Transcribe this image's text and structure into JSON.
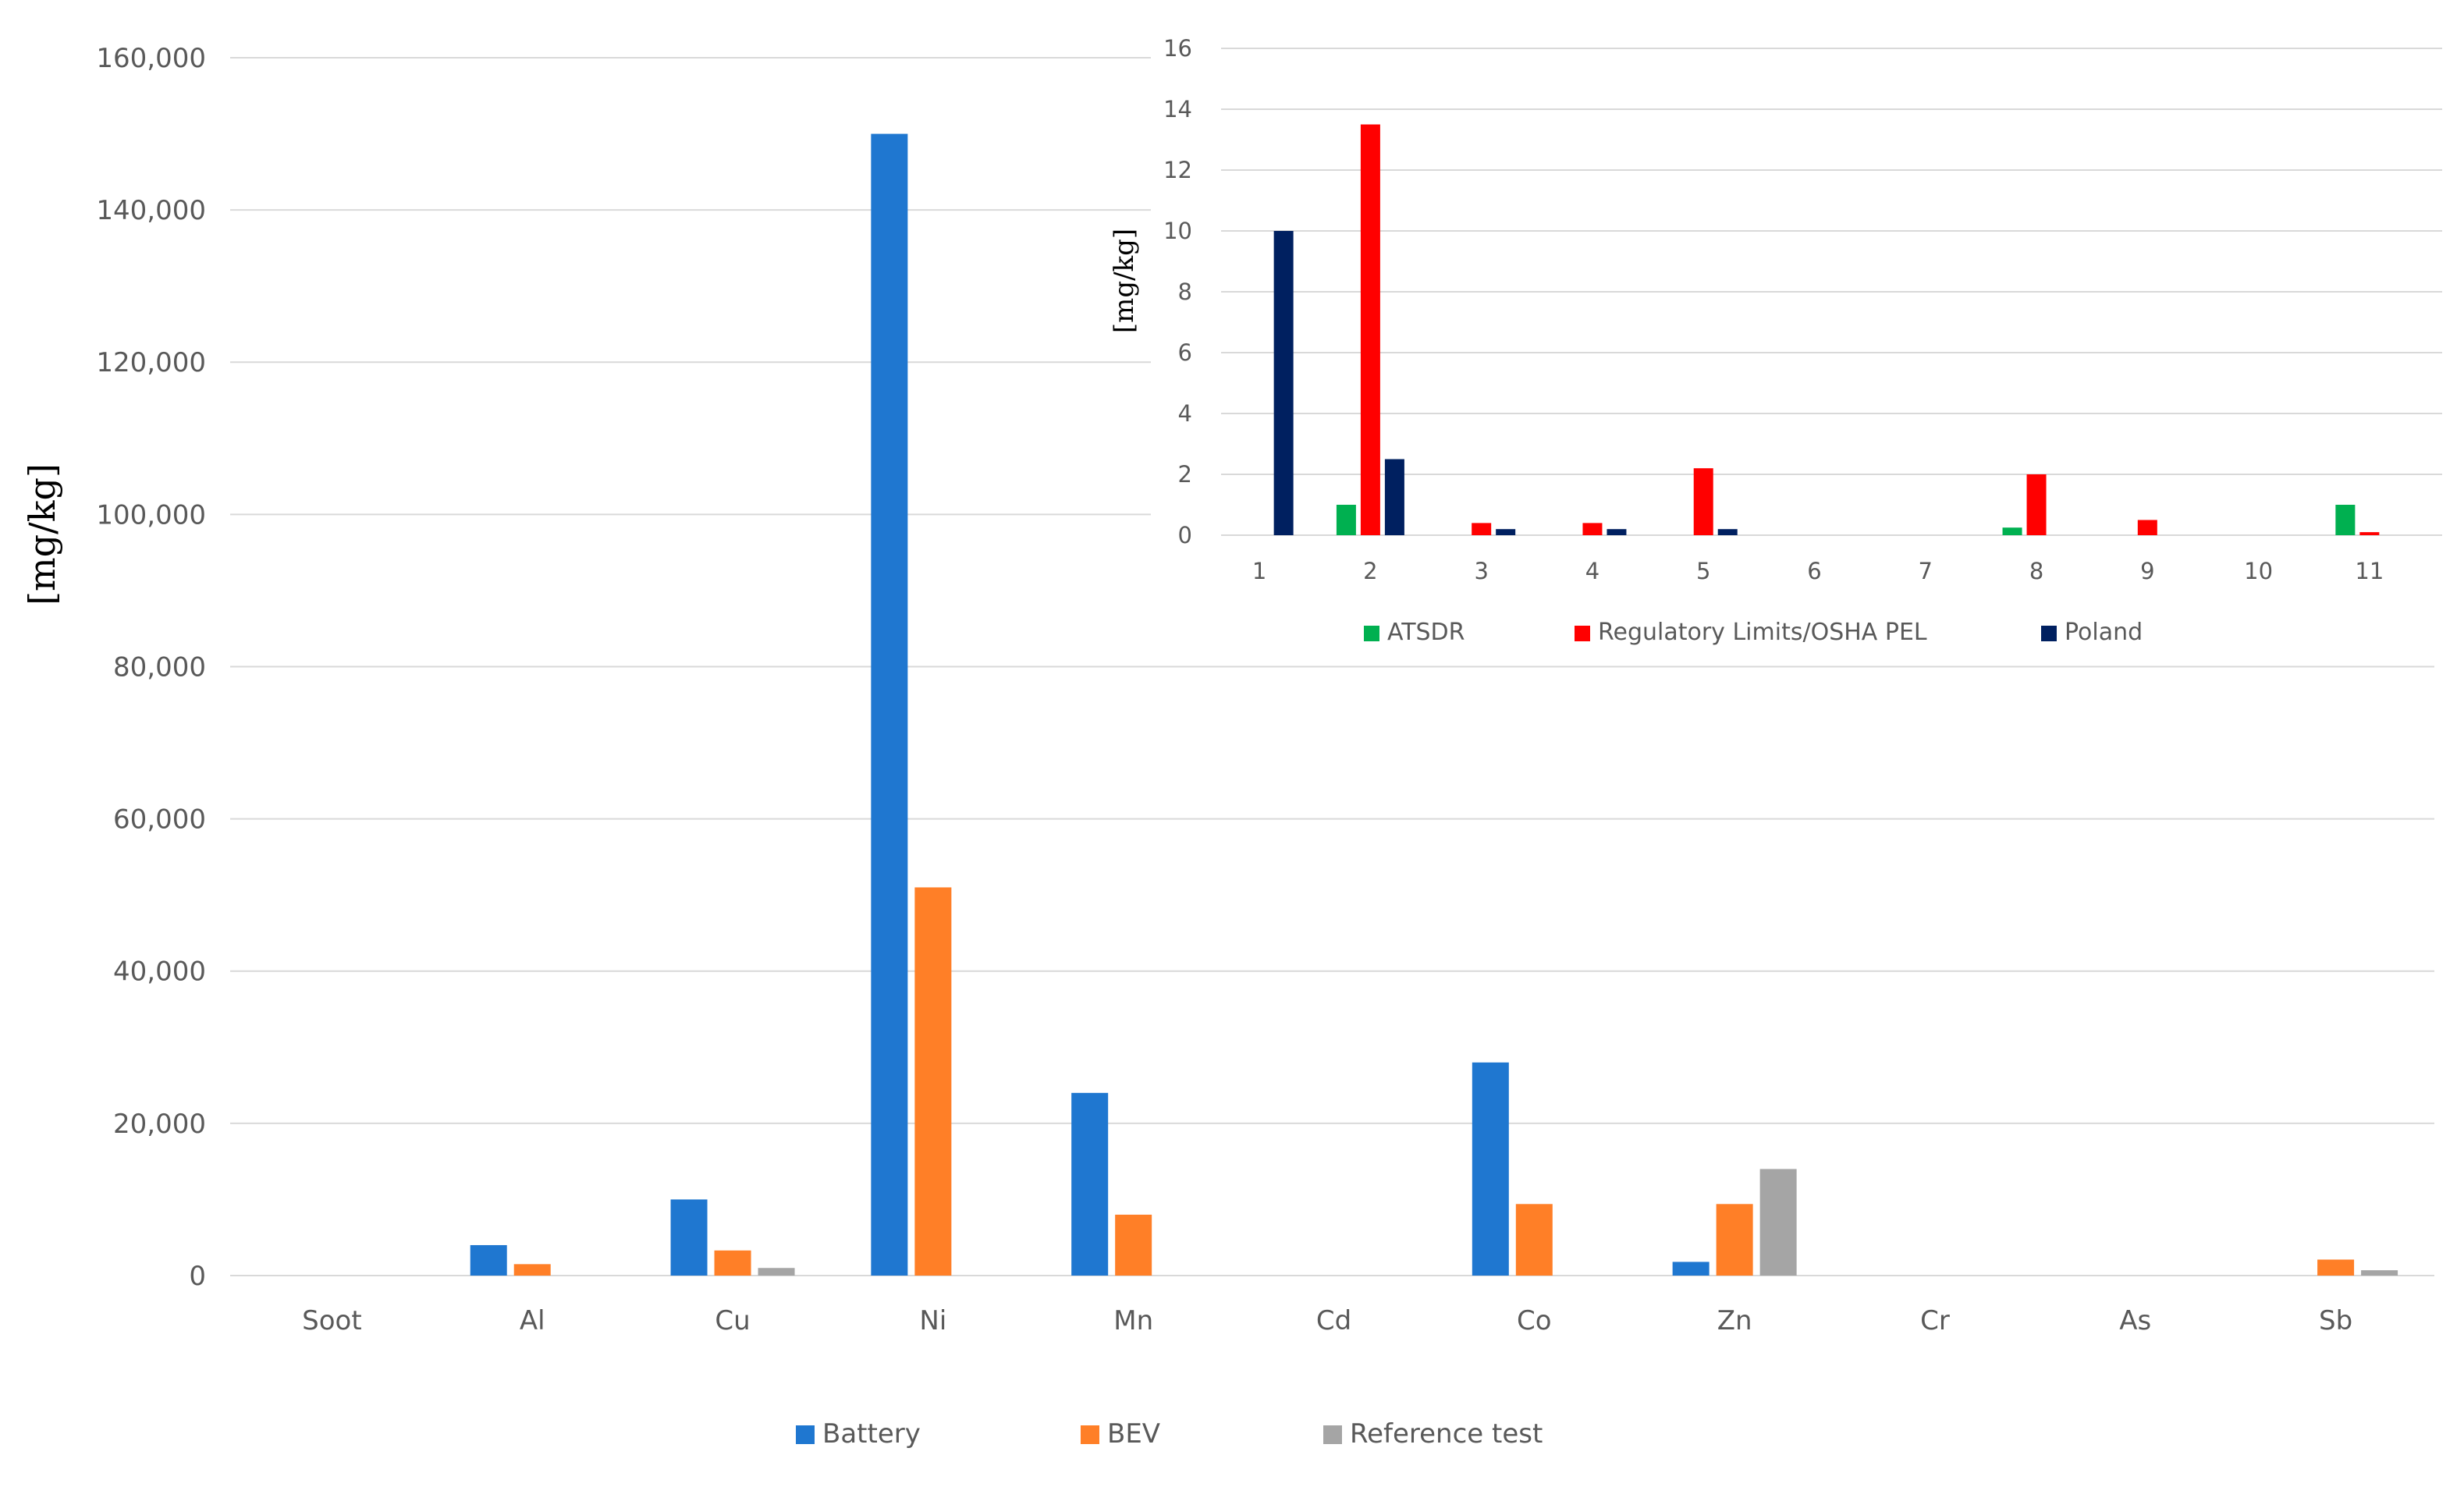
{
  "chart_data": [
    {
      "type": "bar",
      "title": "",
      "xlabel": "",
      "ylabel": "[mg/kg]",
      "ylim": [
        0,
        160000
      ],
      "yticks": [
        0,
        20000,
        40000,
        60000,
        80000,
        100000,
        120000,
        140000,
        160000
      ],
      "ytick_labels": [
        "0",
        "20,000",
        "40,000",
        "60,000",
        "80,000",
        "100,000",
        "120,000",
        "140,000",
        "160,000"
      ],
      "categories": [
        "Soot",
        "Al",
        "Cu",
        "Ni",
        "Mn",
        "Cd",
        "Co",
        "Zn",
        "Cr",
        "As",
        "Sb"
      ],
      "series": [
        {
          "name": "Battery",
          "color": "#1f77d0",
          "values": [
            0,
            4000,
            10000,
            150000,
            24000,
            0,
            28000,
            1800,
            0,
            0,
            0
          ]
        },
        {
          "name": "BEV",
          "color": "#ff7f27",
          "values": [
            0,
            1500,
            3300,
            51000,
            8000,
            0,
            9400,
            9400,
            0,
            0,
            2100
          ]
        },
        {
          "name": "Reference test",
          "color": "#a5a5a5",
          "values": [
            0,
            0,
            1000,
            0,
            0,
            0,
            0,
            14000,
            0,
            0,
            700
          ]
        }
      ],
      "grid": true,
      "legend": "bottom"
    },
    {
      "type": "bar",
      "title": "",
      "xlabel": "",
      "ylabel": "[mg/kg]",
      "ylim": [
        0,
        16
      ],
      "yticks": [
        0,
        2,
        4,
        6,
        8,
        10,
        12,
        14,
        16
      ],
      "ytick_labels": [
        "0",
        "2",
        "4",
        "6",
        "8",
        "10",
        "12",
        "14",
        "16"
      ],
      "categories": [
        "1",
        "2",
        "3",
        "4",
        "5",
        "6",
        "7",
        "8",
        "9",
        "10",
        "11"
      ],
      "series": [
        {
          "name": "ATSDR",
          "color": "#00b050",
          "values": [
            0,
            1,
            0,
            0,
            0,
            0,
            0,
            0.25,
            0,
            0,
            1
          ]
        },
        {
          "name": "Regulatory Limits/OSHA PEL",
          "color": "#ff0000",
          "values": [
            0,
            13.5,
            0.4,
            0.4,
            2.2,
            0,
            0,
            2,
            0.5,
            0,
            0.1
          ]
        },
        {
          "name": "Poland",
          "color": "#002060",
          "values": [
            10,
            2.5,
            0.2,
            0.2,
            0.2,
            0,
            0,
            0,
            0,
            0,
            0
          ]
        }
      ],
      "grid": true,
      "legend": "bottom",
      "inset": "top-right"
    }
  ]
}
